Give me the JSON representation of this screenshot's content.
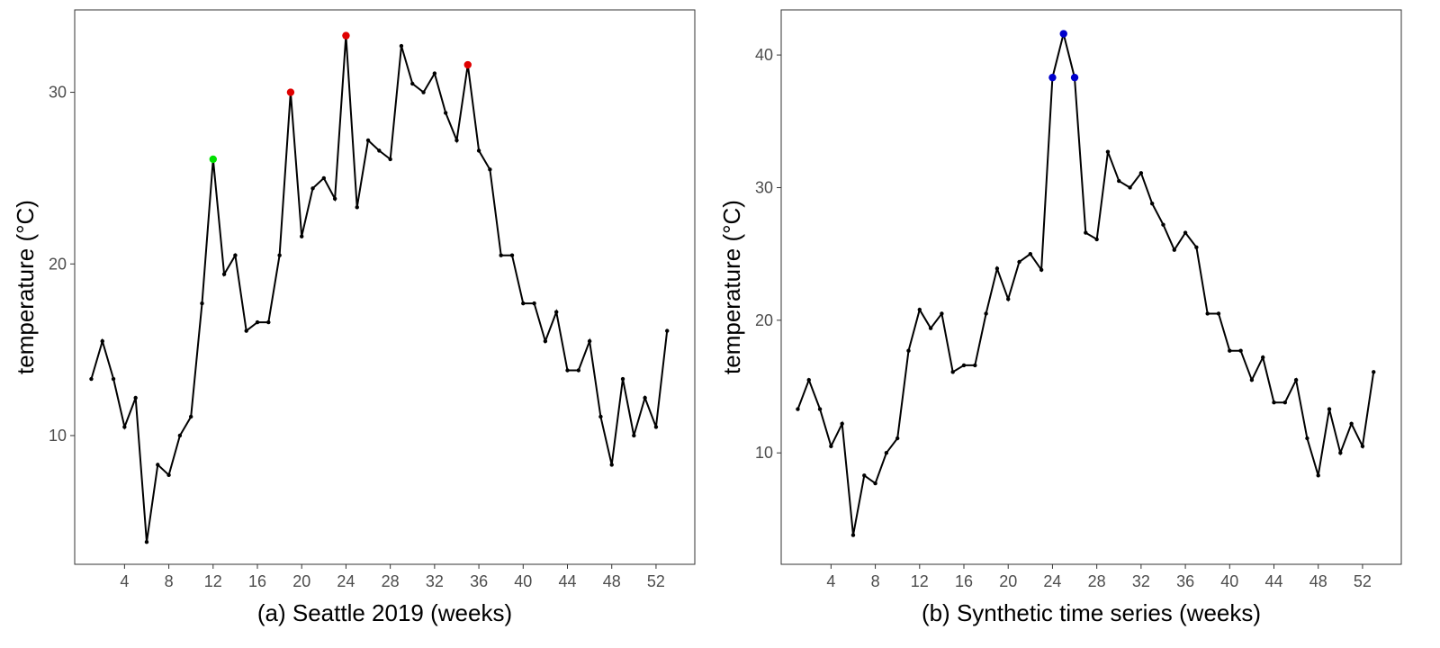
{
  "chart_data": [
    {
      "type": "line",
      "xlabel": "(a) Seattle 2019 (weeks)",
      "ylabel": "temperature (°C)",
      "xticks": [
        4,
        8,
        12,
        16,
        20,
        24,
        28,
        32,
        36,
        40,
        44,
        48,
        52
      ],
      "yticks": [
        10,
        20,
        30
      ],
      "xlim": [
        -0.5,
        55.5
      ],
      "ylim": [
        2.5,
        34.8
      ],
      "grid": false,
      "x": [
        1,
        2,
        3,
        4,
        5,
        6,
        7,
        8,
        9,
        10,
        11,
        12,
        13,
        14,
        15,
        16,
        17,
        18,
        19,
        20,
        21,
        22,
        23,
        24,
        25,
        26,
        27,
        28,
        29,
        30,
        31,
        32,
        33,
        34,
        35,
        36,
        37,
        38,
        39,
        40,
        41,
        42,
        43,
        44,
        45,
        46,
        47,
        48,
        49,
        50,
        51,
        52,
        53
      ],
      "y": [
        13.3,
        15.5,
        13.3,
        10.5,
        12.2,
        3.8,
        8.3,
        7.7,
        10.0,
        11.1,
        17.7,
        26.1,
        19.4,
        20.5,
        16.1,
        16.6,
        16.6,
        20.5,
        30.0,
        21.6,
        24.4,
        25.0,
        23.8,
        33.3,
        23.3,
        27.2,
        26.6,
        26.1,
        32.7,
        30.5,
        30.0,
        31.1,
        28.8,
        27.2,
        31.6,
        26.6,
        25.5,
        20.5,
        20.5,
        17.7,
        17.7,
        15.5,
        17.2,
        13.8,
        13.8,
        15.5,
        11.1,
        8.3,
        13.3,
        10.0,
        12.2,
        10.5,
        16.1
      ],
      "highlights": [
        {
          "x": 12,
          "y": 26.1,
          "color": "#00e000"
        },
        {
          "x": 19,
          "y": 30.0,
          "color": "#e00000"
        },
        {
          "x": 24,
          "y": 33.3,
          "color": "#e00000"
        },
        {
          "x": 35,
          "y": 31.6,
          "color": "#e00000"
        }
      ]
    },
    {
      "type": "line",
      "xlabel": "(b) Synthetic time series (weeks)",
      "ylabel": "temperature (°C)",
      "xticks": [
        4,
        8,
        12,
        16,
        20,
        24,
        28,
        32,
        36,
        40,
        44,
        48,
        52
      ],
      "yticks": [
        10,
        20,
        30,
        40
      ],
      "xlim": [
        -0.5,
        55.5
      ],
      "ylim": [
        1.6,
        43.4
      ],
      "grid": false,
      "x": [
        1,
        2,
        3,
        4,
        5,
        6,
        7,
        8,
        9,
        10,
        11,
        12,
        13,
        14,
        15,
        16,
        17,
        18,
        19,
        20,
        21,
        22,
        23,
        24,
        25,
        26,
        27,
        28,
        29,
        30,
        31,
        32,
        33,
        34,
        35,
        36,
        37,
        38,
        39,
        40,
        41,
        42,
        43,
        44,
        45,
        46,
        47,
        48,
        49,
        50,
        51,
        52,
        53
      ],
      "y": [
        13.3,
        15.5,
        13.3,
        10.5,
        12.2,
        3.8,
        8.3,
        7.7,
        10.0,
        11.1,
        17.7,
        20.8,
        19.4,
        20.5,
        16.1,
        16.6,
        16.6,
        20.5,
        23.9,
        21.6,
        24.4,
        25.0,
        23.8,
        38.3,
        41.6,
        38.3,
        26.6,
        26.1,
        32.7,
        30.5,
        30.0,
        31.1,
        28.8,
        27.2,
        25.3,
        26.6,
        25.5,
        20.5,
        20.5,
        17.7,
        17.7,
        15.5,
        17.2,
        13.8,
        13.8,
        15.5,
        11.1,
        8.3,
        13.3,
        10.0,
        12.2,
        10.5,
        16.1
      ],
      "highlights": [
        {
          "x": 24,
          "y": 38.3,
          "color": "#0000cc"
        },
        {
          "x": 25,
          "y": 41.6,
          "color": "#0000cc"
        },
        {
          "x": 26,
          "y": 38.3,
          "color": "#0000cc"
        }
      ]
    }
  ]
}
